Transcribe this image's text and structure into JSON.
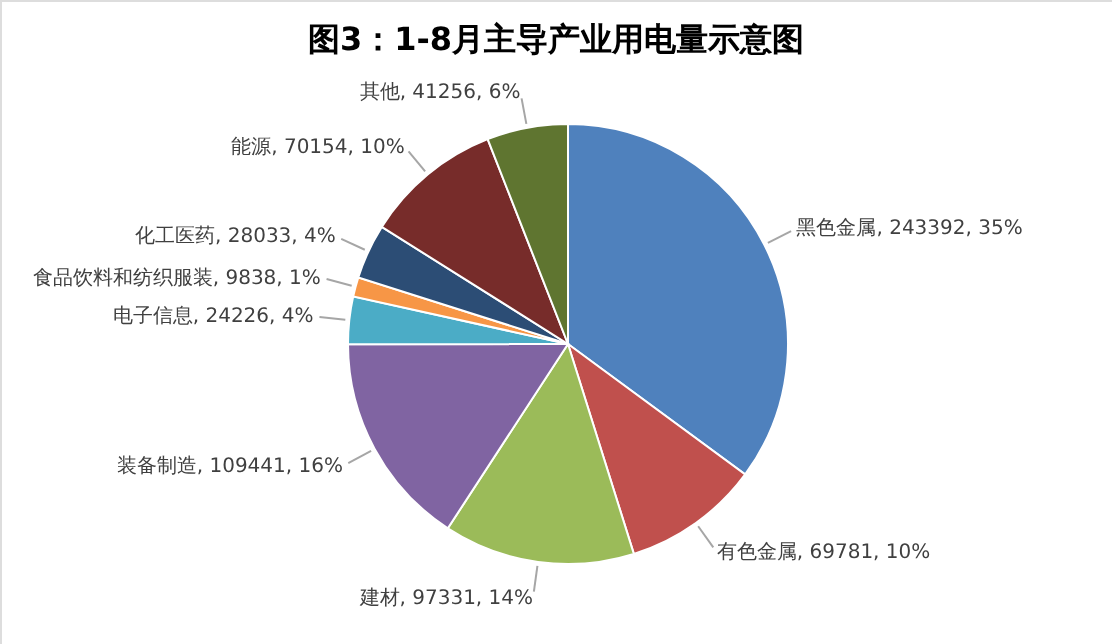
{
  "chart_data": {
    "type": "pie",
    "title": "图3：1-8月主导产业用电量示意图",
    "categories": [
      "黑色金属",
      "有色金属",
      "建材",
      "装备制造",
      "电子信息",
      "食品饮料和纺织服装",
      "化工医药",
      "能源",
      "其他"
    ],
    "values": [
      243392,
      69781,
      97331,
      109441,
      24226,
      9838,
      28033,
      70154,
      41256
    ],
    "value_labels": [
      "243392, 35%",
      "69781, 10%",
      "97331, 14%",
      "109441, 16%",
      "24226, 4%",
      "9838, 1%",
      "28033, 4%",
      "70154, 10%",
      "41256, 6%"
    ],
    "colors": [
      "#4f81bd",
      "#c0504d",
      "#9bbb59",
      "#8064a2",
      "#4bacc6",
      "#f79646",
      "#2c4d75",
      "#772c2a",
      "#5f7530"
    ]
  }
}
